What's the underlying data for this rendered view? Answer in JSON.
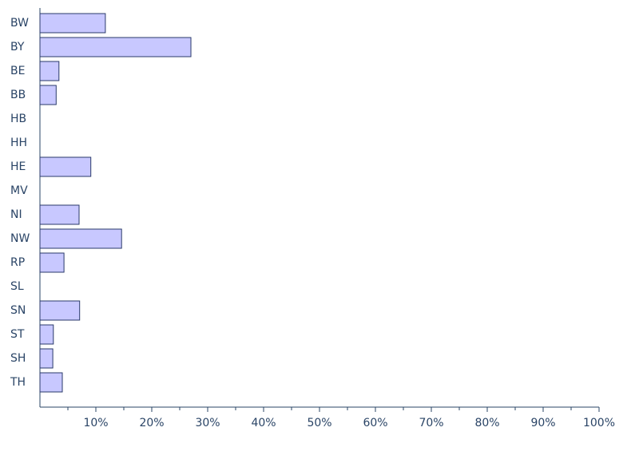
{
  "chart_data": {
    "type": "barh",
    "categories": [
      "BW",
      "BY",
      "BE",
      "BB",
      "HB",
      "HH",
      "HE",
      "MV",
      "NI",
      "NW",
      "RP",
      "SL",
      "SN",
      "ST",
      "SH",
      "TH"
    ],
    "values": [
      11.7,
      27.0,
      3.4,
      2.9,
      0,
      0,
      9.1,
      0,
      7.0,
      14.6,
      4.3,
      0,
      7.1,
      2.4,
      2.3,
      4.0
    ],
    "color": "#c8c8ff",
    "edge_color": "#2a3a6a",
    "xlim": [
      0,
      100
    ],
    "xticks": [
      {
        "value": 10,
        "label": "10%"
      },
      {
        "value": 20,
        "label": "20%"
      },
      {
        "value": 30,
        "label": "30%"
      },
      {
        "value": 40,
        "label": "40%"
      },
      {
        "value": 50,
        "label": "50%"
      },
      {
        "value": 60,
        "label": "60%"
      },
      {
        "value": 70,
        "label": "70%"
      },
      {
        "value": 80,
        "label": "80%"
      },
      {
        "value": 90,
        "label": "90%"
      },
      {
        "value": 100,
        "label": "100%"
      }
    ],
    "xminorticks": [
      5,
      15,
      25,
      35,
      45,
      55,
      65,
      75,
      85,
      95
    ],
    "grid": false
  }
}
